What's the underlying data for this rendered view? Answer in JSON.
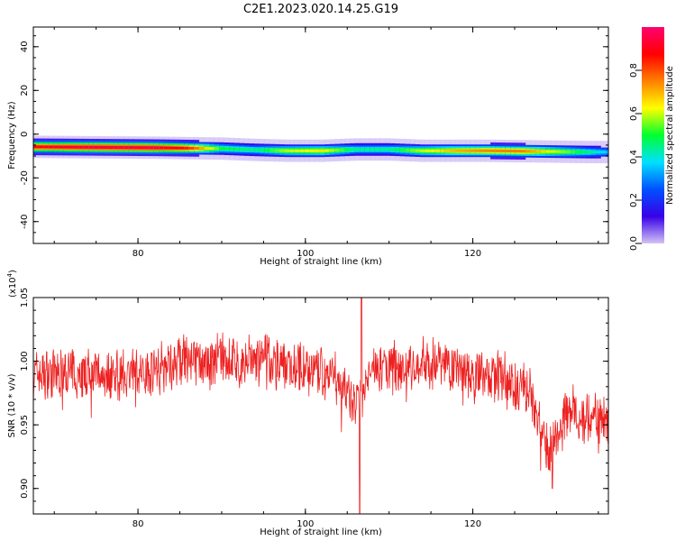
{
  "page_title": "C2E1.2023.020.14.25.G19",
  "colors": {
    "snr_line": "#ee2020",
    "axis": "#000000",
    "background": "#ffffff"
  },
  "chart_data": [
    {
      "type": "heatmap",
      "name_printed": "",
      "xlabel": "Height of straight line (km)",
      "ylabel": "Frequency (Hz)",
      "xlim": [
        67.5,
        136.2
      ],
      "ylim": [
        -50,
        49
      ],
      "x_ticks": [
        "80",
        "100",
        "120"
      ],
      "y_ticks": [
        "40",
        "20",
        "0",
        "-20",
        "-40"
      ],
      "colorbar": {
        "label": "Normalized spectral amplitude",
        "range": [
          0,
          1
        ],
        "ticks": [
          "0.0",
          "0.2",
          "0.4",
          "0.6",
          "0.8"
        ],
        "stops": [
          "#d3c3f5",
          "#3800e8",
          "#0050ff",
          "#00e0ff",
          "#00ff30",
          "#ffff00",
          "#ff8000",
          "#ff0000",
          "#ff0070"
        ]
      },
      "signal_band": {
        "center_hz": -7,
        "halfwidth_hz": 1.6,
        "points": [
          {
            "height_km": 68,
            "freq_hz": -5.8,
            "amp": 0.9
          },
          {
            "height_km": 75,
            "freq_hz": -6.0,
            "amp": 0.95
          },
          {
            "height_km": 82,
            "freq_hz": -6.2,
            "amp": 0.95
          },
          {
            "height_km": 86,
            "freq_hz": -6.4,
            "amp": 0.85
          },
          {
            "height_km": 90,
            "freq_hz": -6.6,
            "amp": 0.5
          },
          {
            "height_km": 94,
            "freq_hz": -7.2,
            "amp": 0.45
          },
          {
            "height_km": 98,
            "freq_hz": -7.6,
            "amp": 0.6
          },
          {
            "height_km": 102,
            "freq_hz": -7.6,
            "amp": 0.65
          },
          {
            "height_km": 106,
            "freq_hz": -7.0,
            "amp": 0.45
          },
          {
            "height_km": 110,
            "freq_hz": -7.0,
            "amp": 0.45
          },
          {
            "height_km": 114,
            "freq_hz": -7.6,
            "amp": 0.6
          },
          {
            "height_km": 118,
            "freq_hz": -7.6,
            "amp": 0.7
          },
          {
            "height_km": 122,
            "freq_hz": -7.6,
            "amp": 0.75
          },
          {
            "height_km": 126,
            "freq_hz": -7.8,
            "amp": 0.75
          },
          {
            "height_km": 130,
            "freq_hz": -8.0,
            "amp": 0.6
          },
          {
            "height_km": 134,
            "freq_hz": -8.2,
            "amp": 0.45
          },
          {
            "height_km": 136,
            "freq_hz": -8.2,
            "amp": 0.35
          }
        ]
      }
    },
    {
      "type": "line",
      "xlabel": "Height of straight line (km)",
      "ylabel": "SNR (10 * v/v)",
      "y_multiplier_label": "(x10",
      "y_multiplier_exp": "4",
      "y_multiplier_close": ")",
      "xlim": [
        67.5,
        136.2
      ],
      "ylim": [
        0.88,
        1.05
      ],
      "x_ticks": [
        "80",
        "100",
        "120"
      ],
      "y_ticks": [
        "1.05",
        "1.00",
        "0.95",
        "0.90"
      ],
      "series_trend": [
        {
          "x": 67.5,
          "y": 0.99
        },
        {
          "x": 75,
          "y": 0.99
        },
        {
          "x": 80,
          "y": 0.99
        },
        {
          "x": 85,
          "y": 1.0
        },
        {
          "x": 90,
          "y": 1.0
        },
        {
          "x": 95,
          "y": 1.0
        },
        {
          "x": 100,
          "y": 0.995
        },
        {
          "x": 104,
          "y": 0.985
        },
        {
          "x": 106,
          "y": 0.965
        },
        {
          "x": 108,
          "y": 0.995
        },
        {
          "x": 112,
          "y": 0.995
        },
        {
          "x": 116,
          "y": 1.0
        },
        {
          "x": 120,
          "y": 0.99
        },
        {
          "x": 124,
          "y": 0.985
        },
        {
          "x": 127,
          "y": 0.975
        },
        {
          "x": 129,
          "y": 0.925
        },
        {
          "x": 131,
          "y": 0.96
        },
        {
          "x": 136.2,
          "y": 0.955
        }
      ],
      "noise_amplitude": 0.02,
      "features": [
        {
          "x": 106.7,
          "y": 1.05,
          "note": "max spike"
        },
        {
          "x": 106.5,
          "y": 0.88,
          "note": "min dip"
        },
        {
          "x": 129.5,
          "y": 0.9,
          "note": "dip"
        }
      ]
    }
  ]
}
